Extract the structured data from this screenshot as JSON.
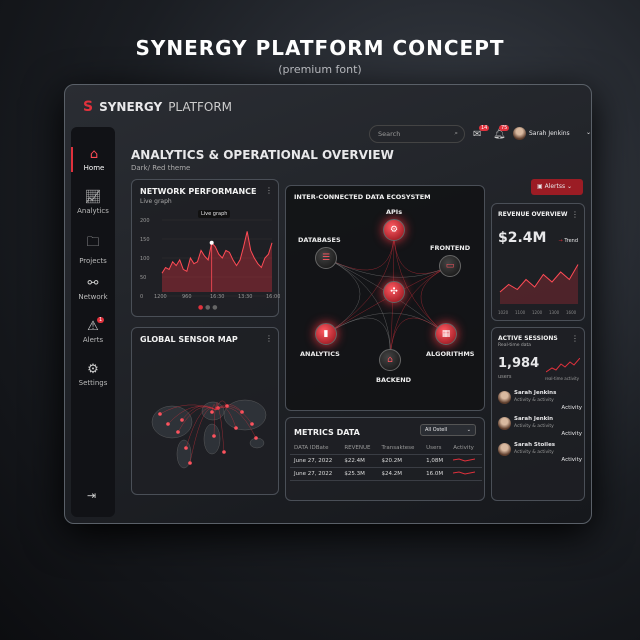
{
  "headline": "SYNERGY PLATFORM CONCEPT",
  "subheadline": "(premium font)",
  "brand": {
    "name_bold": "SYNERGY",
    "name_light": "PLATFORM"
  },
  "header": {
    "search_placeholder": "Search",
    "mail_count": "14",
    "notif_count": "75",
    "user": "Sarah Jenkins"
  },
  "sidebar": {
    "items": [
      {
        "label": "Home",
        "icon": "home-icon"
      },
      {
        "label": "Analytics",
        "icon": "chart-icon"
      },
      {
        "label": "Projects",
        "icon": "folder-icon"
      },
      {
        "label": "Network",
        "icon": "network-icon"
      },
      {
        "label": "Alerts",
        "icon": "alert-icon",
        "badge": "1"
      },
      {
        "label": "Settings",
        "icon": "gear-icon"
      }
    ],
    "logout_icon": "logout-icon"
  },
  "page": {
    "title": "ANALYTICS & OPERATIONAL OVERVIEW",
    "subtitle": "Dark/ Red theme",
    "alerts_button": "Alertss"
  },
  "network": {
    "title": "NETWORK PERFORMANCE",
    "subtitle": "Live graph",
    "tooltip": "Live graph",
    "y_ticks": [
      "200",
      "150",
      "100",
      "50",
      "0"
    ],
    "x_ticks": [
      "1200",
      "960",
      "16:30",
      "13:30",
      "16:00"
    ],
    "values": [
      60,
      75,
      70,
      90,
      80,
      95,
      70,
      65,
      100,
      85,
      90,
      120,
      105,
      95,
      140,
      130,
      110,
      100,
      120,
      115,
      95,
      80,
      95,
      130,
      170,
      120,
      100,
      85,
      75,
      100,
      110,
      140
    ]
  },
  "ecosystem": {
    "title": "INTER-CONNECTED DATA ECOSYSTEM",
    "nodes": [
      "APIs",
      "DATABASES",
      "FRONTEND",
      "ANALYTICS",
      "ALGORITHMS",
      "BACKEND"
    ]
  },
  "map": {
    "title": "GLOBAL SENSOR MAP"
  },
  "revenue": {
    "title": "REVENUE OVERVIEW",
    "value": "$2.4M",
    "trend": "Trend",
    "x_ticks": [
      "1020",
      "1100",
      "1200",
      "1300",
      "1600"
    ],
    "values": [
      20,
      35,
      25,
      45,
      30,
      55,
      40,
      60,
      45,
      75
    ]
  },
  "sessions": {
    "title": "ACTIVE SESSIONS",
    "subtitle": "Real-time data",
    "value": "1,984",
    "unit": "users",
    "spark_label": "real-time activity",
    "users": [
      {
        "name": "Sarah Jenkins",
        "detail": "Activity & activity",
        "action": "Activity"
      },
      {
        "name": "Sarah Jenkin",
        "detail": "Activity & activity",
        "action": "Activity"
      },
      {
        "name": "Sarah Stoiles",
        "detail": "Activity & activity",
        "action": "Activity"
      }
    ]
  },
  "metrics": {
    "title": "METRICS DATA",
    "filter": "All Ostell",
    "columns": [
      "DATA IDBate",
      "REVENUE",
      "Transaktese",
      "Users",
      "Activity"
    ],
    "rows": [
      [
        "June 27, 2022",
        "$22.4M",
        "$20.2M",
        "1,08M"
      ],
      [
        "June 27, 2022",
        "$25.3M",
        "$24.2M",
        "16.0M"
      ]
    ]
  },
  "colors": {
    "accent": "#e0313c",
    "bg": "#16181c"
  }
}
